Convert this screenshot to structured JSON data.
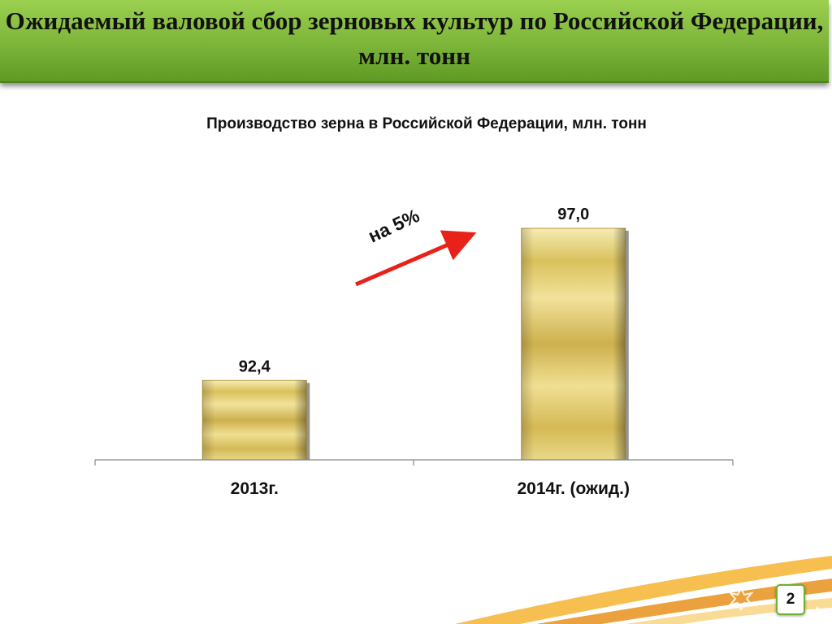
{
  "slide": {
    "title": "Ожидаемый валовой сбор зерновых культур по Российской Федерации, млн. тонн",
    "page_number": "2"
  },
  "chart_data": {
    "type": "bar",
    "title": "Производство зерна в Российской Федерации, млн. тонн",
    "categories": [
      "2013г.",
      "2014г. (ожид.)"
    ],
    "values": [
      92.4,
      97.0
    ],
    "value_labels": [
      "92,4",
      "97,0"
    ],
    "annotation": "на 5%",
    "grid": false,
    "legend": "none"
  },
  "colors": {
    "header_green": "#7db53a",
    "bar_gold": "#d9c56a",
    "arrow_red": "#e8221b",
    "accent_orange": "#f0a020"
  },
  "icons": [
    "star-burst-icon"
  ]
}
